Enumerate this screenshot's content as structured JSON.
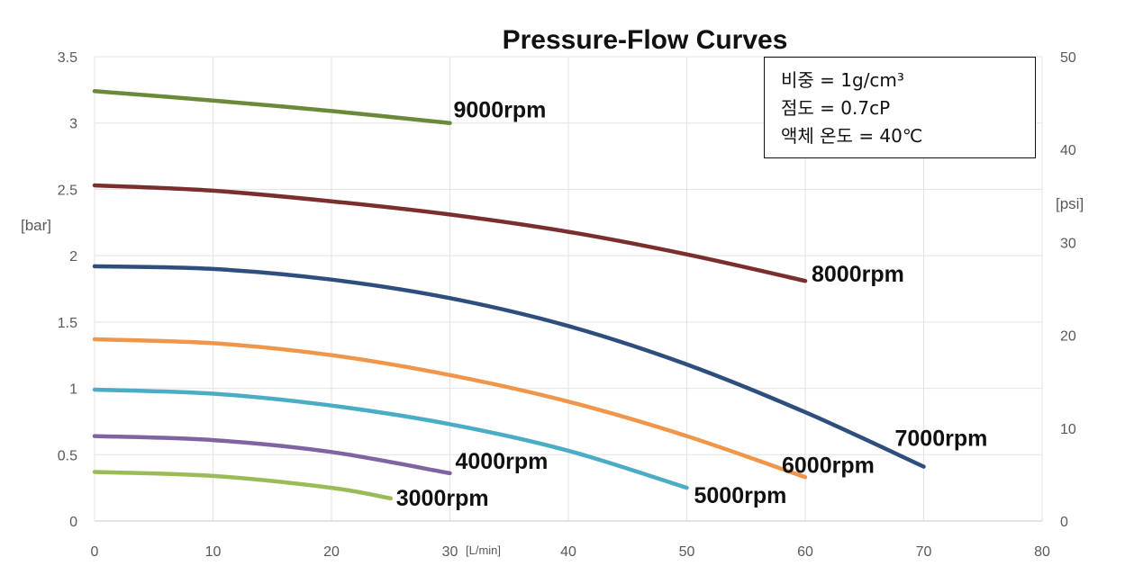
{
  "chart_data": {
    "type": "line",
    "title": "Pressure-Flow Curves",
    "xlabel": "[L/min]",
    "ylabel": "[bar]",
    "y2label": "[psi]",
    "xlim": [
      0,
      80
    ],
    "ylim": [
      0,
      3.5
    ],
    "y2lim": [
      0,
      50
    ],
    "x_ticks": [
      "0",
      "10",
      "20",
      "30",
      "40",
      "50",
      "60",
      "70",
      "80"
    ],
    "y_ticks": [
      "0",
      "0.5",
      "1",
      "1.5",
      "2",
      "2.5",
      "3",
      "3.5"
    ],
    "y2_ticks": [
      "0",
      "10",
      "20",
      "30",
      "40",
      "50"
    ],
    "grid": true,
    "series": [
      {
        "name": "9000rpm",
        "color": "#6a8a3a",
        "x": [
          0,
          10,
          20,
          30
        ],
        "y": [
          3.24,
          3.17,
          3.09,
          3.0
        ]
      },
      {
        "name": "8000rpm",
        "color": "#7b2e2e",
        "x": [
          0,
          10,
          20,
          30,
          40,
          50,
          60
        ],
        "y": [
          2.53,
          2.49,
          2.41,
          2.31,
          2.18,
          2.01,
          1.81
        ]
      },
      {
        "name": "7000rpm",
        "color": "#2e4e7e",
        "x": [
          0,
          10,
          20,
          30,
          40,
          50,
          60,
          70
        ],
        "y": [
          1.92,
          1.9,
          1.82,
          1.68,
          1.47,
          1.18,
          0.82,
          0.41
        ]
      },
      {
        "name": "6000rpm",
        "color": "#f0964a",
        "x": [
          0,
          10,
          20,
          30,
          40,
          50,
          60
        ],
        "y": [
          1.37,
          1.34,
          1.25,
          1.1,
          0.9,
          0.64,
          0.33
        ]
      },
      {
        "name": "5000rpm",
        "color": "#4bacc6",
        "x": [
          0,
          10,
          20,
          30,
          40,
          50
        ],
        "y": [
          0.99,
          0.96,
          0.87,
          0.73,
          0.53,
          0.25
        ]
      },
      {
        "name": "4000rpm",
        "color": "#8064a2",
        "x": [
          0,
          10,
          20,
          30
        ],
        "y": [
          0.64,
          0.61,
          0.52,
          0.36
        ]
      },
      {
        "name": "3000rpm",
        "color": "#9bbb59",
        "x": [
          0,
          10,
          20,
          25
        ],
        "y": [
          0.37,
          0.34,
          0.25,
          0.17
        ]
      }
    ]
  },
  "info_box": {
    "lines": [
      "비중 = 1g/cm³",
      "점도 = 0.7cP",
      "액체 온도 = 40℃"
    ]
  }
}
